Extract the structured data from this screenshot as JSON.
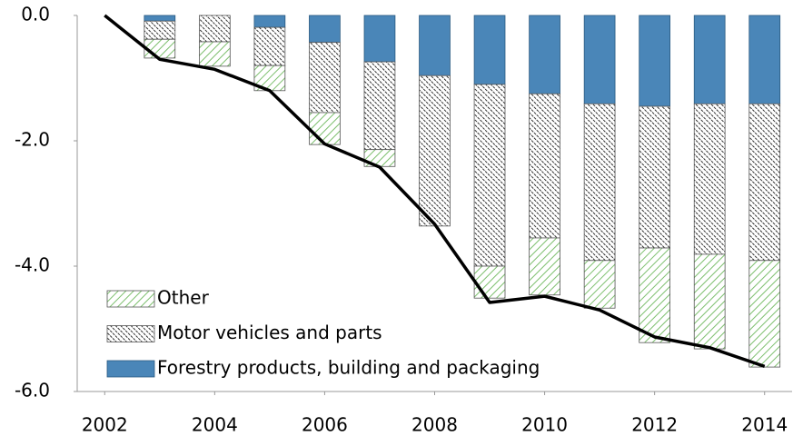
{
  "chart_data": {
    "type": "bar",
    "stacked": true,
    "x": [
      2002,
      2003,
      2004,
      2005,
      2006,
      2007,
      2008,
      2009,
      2010,
      2011,
      2012,
      2013,
      2014
    ],
    "series": [
      {
        "name": "Forestry products, building and packaging",
        "color": "#4a86b8",
        "pattern": "solid",
        "values": [
          null,
          -0.09,
          0,
          -0.19,
          -0.43,
          -0.74,
          -0.96,
          -1.1,
          -1.25,
          -1.41,
          -1.45,
          -1.41,
          -1.41
        ]
      },
      {
        "name": "Motor vehicles and parts",
        "color": "#000000",
        "pattern": "dots",
        "values": [
          null,
          -0.29,
          -0.42,
          -0.61,
          -1.12,
          -1.4,
          -2.4,
          -2.9,
          -2.3,
          -2.5,
          -2.26,
          -2.4,
          -2.5
        ]
      },
      {
        "name": "Other",
        "color": "#7dbf6e",
        "pattern": "hatch",
        "values": [
          null,
          -0.3,
          -0.39,
          -0.4,
          -0.51,
          -0.27,
          0,
          -0.51,
          -0.91,
          -0.76,
          -1.51,
          -1.51,
          -1.7
        ]
      },
      {
        "type": "line",
        "color": "#000000",
        "values": [
          0,
          -0.7,
          -0.86,
          -1.2,
          -2.05,
          -2.42,
          -3.33,
          -4.58,
          -4.48,
          -4.7,
          -5.13,
          -5.3,
          -5.6
        ]
      }
    ],
    "xlim": [
      2001.5,
      2014.5
    ],
    "xticks": [
      2002,
      2004,
      2006,
      2008,
      2010,
      2012,
      2014
    ],
    "ylim": [
      -6,
      0
    ],
    "yticks": [
      {
        "value": 0,
        "label": "0.0"
      },
      {
        "value": -2,
        "label": "-2.0"
      },
      {
        "value": -4,
        "label": "-4.0"
      },
      {
        "value": -6,
        "label": "-6.0"
      }
    ],
    "legend": "lower-left"
  }
}
